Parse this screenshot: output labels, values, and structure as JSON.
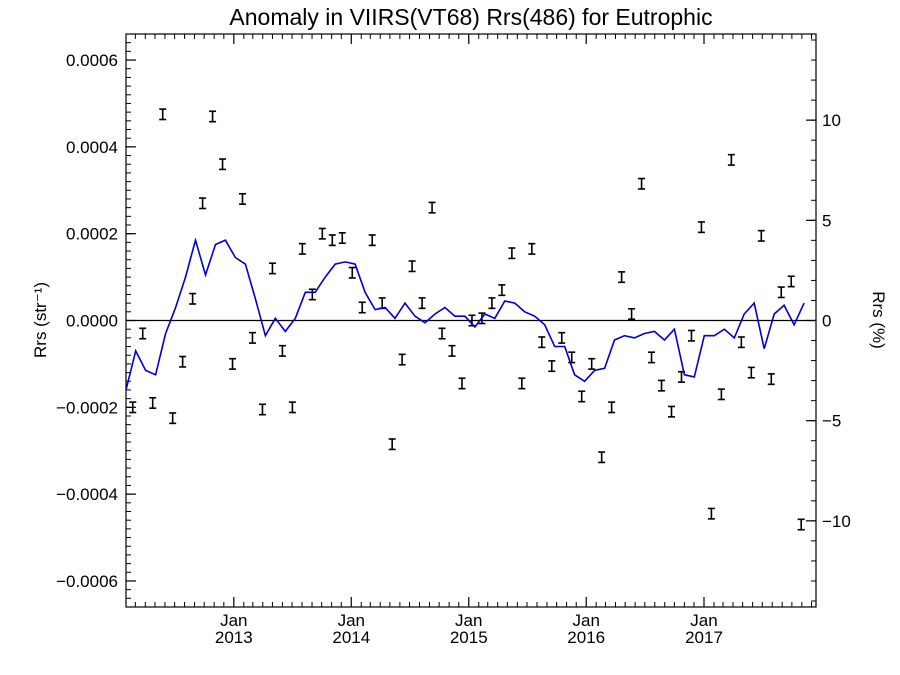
{
  "chart_data": {
    "type": "line",
    "title": "Anomaly in VIIRS(VT68) Rrs(486) for Eutrophic",
    "ylabel_left": "Rrs (str⁻¹)",
    "ylabel_right": "Rrs (%)",
    "xlim": [
      "2012-02-01",
      "2017-12-15"
    ],
    "ylim_left": [
      -0.00066,
      0.00066
    ],
    "ylim_right": [
      -14.3,
      14.3
    ],
    "y_ticks_left": [
      {
        "value": -0.0006,
        "label": "−0.0006"
      },
      {
        "value": -0.0004,
        "label": "−0.0004"
      },
      {
        "value": -0.0002,
        "label": "−0.0002"
      },
      {
        "value": 0.0,
        "label": "0.0000"
      },
      {
        "value": 0.0002,
        "label": "0.0002"
      },
      {
        "value": 0.0004,
        "label": "0.0004"
      },
      {
        "value": 0.0006,
        "label": "0.0006"
      }
    ],
    "y_ticks_right": [
      {
        "value": -10,
        "label": "−10"
      },
      {
        "value": -5,
        "label": "−5"
      },
      {
        "value": 0,
        "label": "0"
      },
      {
        "value": 5,
        "label": "5"
      },
      {
        "value": 10,
        "label": "10"
      }
    ],
    "x_ticks": [
      {
        "date": "2013-01-01",
        "month": "Jan",
        "year": "2013"
      },
      {
        "date": "2014-01-01",
        "month": "Jan",
        "year": "2014"
      },
      {
        "date": "2015-01-01",
        "month": "Jan",
        "year": "2015"
      },
      {
        "date": "2016-01-01",
        "month": "Jan",
        "year": "2016"
      },
      {
        "date": "2017-01-01",
        "month": "Jan",
        "year": "2017"
      }
    ],
    "zero_line": true,
    "grid": false,
    "series": [
      {
        "type": "errorbar",
        "color": "#000000",
        "error": 1.2e-05,
        "points": [
          {
            "x": "2012-02-22",
            "y": -0.0002
          },
          {
            "x": "2012-03-24",
            "y": -3e-05
          },
          {
            "x": "2012-04-24",
            "y": -0.00019
          },
          {
            "x": "2012-05-25",
            "y": 0.000475
          },
          {
            "x": "2012-06-25",
            "y": -0.000225
          },
          {
            "x": "2012-07-26",
            "y": -9.5e-05
          },
          {
            "x": "2012-08-26",
            "y": 5e-05
          },
          {
            "x": "2012-09-26",
            "y": 0.00027
          },
          {
            "x": "2012-10-27",
            "y": 0.00047
          },
          {
            "x": "2012-11-27",
            "y": 0.00036
          },
          {
            "x": "2012-12-28",
            "y": -0.0001
          },
          {
            "x": "2013-01-28",
            "y": 0.00028
          },
          {
            "x": "2013-02-28",
            "y": -4e-05
          },
          {
            "x": "2013-03-31",
            "y": -0.000205
          },
          {
            "x": "2013-05-01",
            "y": 0.00012
          },
          {
            "x": "2013-06-01",
            "y": -7e-05
          },
          {
            "x": "2013-07-02",
            "y": -0.0002
          },
          {
            "x": "2013-08-02",
            "y": 0.000165
          },
          {
            "x": "2013-09-02",
            "y": 6e-05
          },
          {
            "x": "2013-10-03",
            "y": 0.0002
          },
          {
            "x": "2013-11-03",
            "y": 0.000185
          },
          {
            "x": "2013-12-04",
            "y": 0.00019
          },
          {
            "x": "2014-01-04",
            "y": 0.00011
          },
          {
            "x": "2014-02-04",
            "y": 3e-05
          },
          {
            "x": "2014-03-07",
            "y": 0.000185
          },
          {
            "x": "2014-04-07",
            "y": 4e-05
          },
          {
            "x": "2014-05-08",
            "y": -0.000285
          },
          {
            "x": "2014-06-08",
            "y": -9e-05
          },
          {
            "x": "2014-07-09",
            "y": 0.000125
          },
          {
            "x": "2014-08-09",
            "y": 4e-05
          },
          {
            "x": "2014-09-09",
            "y": 0.00026
          },
          {
            "x": "2014-10-10",
            "y": -3e-05
          },
          {
            "x": "2014-11-10",
            "y": -7e-05
          },
          {
            "x": "2014-12-11",
            "y": -0.000145
          },
          {
            "x": "2015-01-11",
            "y": 0.0
          },
          {
            "x": "2015-02-11",
            "y": 5e-06
          },
          {
            "x": "2015-03-14",
            "y": 4e-05
          },
          {
            "x": "2015-04-14",
            "y": 7e-05
          },
          {
            "x": "2015-05-15",
            "y": 0.000155
          },
          {
            "x": "2015-06-15",
            "y": -0.000145
          },
          {
            "x": "2015-07-16",
            "y": 0.000165
          },
          {
            "x": "2015-08-16",
            "y": -5e-05
          },
          {
            "x": "2015-09-16",
            "y": -0.000105
          },
          {
            "x": "2015-10-17",
            "y": -4e-05
          },
          {
            "x": "2015-11-17",
            "y": -8.5e-05
          },
          {
            "x": "2015-12-18",
            "y": -0.000175
          },
          {
            "x": "2016-01-18",
            "y": -0.0001
          },
          {
            "x": "2016-02-18",
            "y": -0.000315
          },
          {
            "x": "2016-03-20",
            "y": -0.0002
          },
          {
            "x": "2016-04-20",
            "y": 0.0001
          },
          {
            "x": "2016-05-21",
            "y": 1.5e-05
          },
          {
            "x": "2016-06-21",
            "y": 0.000315
          },
          {
            "x": "2016-07-22",
            "y": -8.5e-05
          },
          {
            "x": "2016-08-22",
            "y": -0.00015
          },
          {
            "x": "2016-09-22",
            "y": -0.00021
          },
          {
            "x": "2016-10-23",
            "y": -0.00013
          },
          {
            "x": "2016-11-23",
            "y": -3.5e-05
          },
          {
            "x": "2016-12-24",
            "y": 0.000215
          },
          {
            "x": "2017-01-24",
            "y": -0.000445
          },
          {
            "x": "2017-02-24",
            "y": -0.00017
          },
          {
            "x": "2017-03-27",
            "y": 0.00037
          },
          {
            "x": "2017-04-27",
            "y": -5e-05
          },
          {
            "x": "2017-05-28",
            "y": -0.00012
          },
          {
            "x": "2017-06-28",
            "y": 0.000195
          },
          {
            "x": "2017-07-29",
            "y": -0.000135
          },
          {
            "x": "2017-08-29",
            "y": 6.5e-05
          },
          {
            "x": "2017-09-29",
            "y": 9e-05
          },
          {
            "x": "2017-10-30",
            "y": -0.00047
          }
        ]
      },
      {
        "type": "line",
        "color": "#0000cc",
        "points": [
          {
            "x": "2012-02-01",
            "y": -0.00016
          },
          {
            "x": "2012-03-02",
            "y": -7e-05
          },
          {
            "x": "2012-04-02",
            "y": -0.000115
          },
          {
            "x": "2012-05-03",
            "y": -0.000125
          },
          {
            "x": "2012-06-03",
            "y": -3e-05
          },
          {
            "x": "2012-07-04",
            "y": 3e-05
          },
          {
            "x": "2012-08-04",
            "y": 0.0001
          },
          {
            "x": "2012-09-04",
            "y": 0.000185
          },
          {
            "x": "2012-10-05",
            "y": 0.000105
          },
          {
            "x": "2012-11-05",
            "y": 0.000175
          },
          {
            "x": "2012-12-06",
            "y": 0.000185
          },
          {
            "x": "2013-01-06",
            "y": 0.000145
          },
          {
            "x": "2013-02-06",
            "y": 0.00013
          },
          {
            "x": "2013-03-09",
            "y": 5e-05
          },
          {
            "x": "2013-04-09",
            "y": -3.5e-05
          },
          {
            "x": "2013-05-10",
            "y": 5e-06
          },
          {
            "x": "2013-06-10",
            "y": -2.5e-05
          },
          {
            "x": "2013-07-11",
            "y": 5e-06
          },
          {
            "x": "2013-08-11",
            "y": 6.5e-05
          },
          {
            "x": "2013-09-11",
            "y": 6.5e-05
          },
          {
            "x": "2013-10-12",
            "y": 0.0001
          },
          {
            "x": "2013-11-12",
            "y": 0.00013
          },
          {
            "x": "2013-12-13",
            "y": 0.000135
          },
          {
            "x": "2014-01-13",
            "y": 0.00013
          },
          {
            "x": "2014-02-13",
            "y": 6.5e-05
          },
          {
            "x": "2014-03-16",
            "y": 2.5e-05
          },
          {
            "x": "2014-04-16",
            "y": 3e-05
          },
          {
            "x": "2014-05-17",
            "y": 5e-06
          },
          {
            "x": "2014-06-17",
            "y": 4e-05
          },
          {
            "x": "2014-07-18",
            "y": 1e-05
          },
          {
            "x": "2014-08-18",
            "y": -5e-06
          },
          {
            "x": "2014-09-18",
            "y": 1.5e-05
          },
          {
            "x": "2014-10-19",
            "y": 3e-05
          },
          {
            "x": "2014-11-19",
            "y": 1e-05
          },
          {
            "x": "2014-12-20",
            "y": 1e-05
          },
          {
            "x": "2015-01-20",
            "y": -1.5e-05
          },
          {
            "x": "2015-02-20",
            "y": 1.5e-05
          },
          {
            "x": "2015-03-23",
            "y": 5e-06
          },
          {
            "x": "2015-04-23",
            "y": 4.5e-05
          },
          {
            "x": "2015-05-24",
            "y": 4e-05
          },
          {
            "x": "2015-06-24",
            "y": 2e-05
          },
          {
            "x": "2015-07-25",
            "y": 1e-05
          },
          {
            "x": "2015-08-25",
            "y": -1e-05
          },
          {
            "x": "2015-09-25",
            "y": -6e-05
          },
          {
            "x": "2015-10-26",
            "y": -6e-05
          },
          {
            "x": "2015-11-26",
            "y": -0.000125
          },
          {
            "x": "2015-12-27",
            "y": -0.00014
          },
          {
            "x": "2016-01-27",
            "y": -0.000115
          },
          {
            "x": "2016-02-27",
            "y": -0.00011
          },
          {
            "x": "2016-03-29",
            "y": -4.5e-05
          },
          {
            "x": "2016-04-29",
            "y": -3.5e-05
          },
          {
            "x": "2016-05-30",
            "y": -4e-05
          },
          {
            "x": "2016-06-30",
            "y": -3e-05
          },
          {
            "x": "2016-07-31",
            "y": -2.5e-05
          },
          {
            "x": "2016-08-31",
            "y": -4.5e-05
          },
          {
            "x": "2016-10-01",
            "y": -2e-05
          },
          {
            "x": "2016-11-01",
            "y": -0.000125
          },
          {
            "x": "2016-12-02",
            "y": -0.00013
          },
          {
            "x": "2017-01-02",
            "y": -3.5e-05
          },
          {
            "x": "2017-02-02",
            "y": -3.5e-05
          },
          {
            "x": "2017-03-05",
            "y": -2e-05
          },
          {
            "x": "2017-04-05",
            "y": -4e-05
          },
          {
            "x": "2017-05-06",
            "y": 1.5e-05
          },
          {
            "x": "2017-06-06",
            "y": 4e-05
          },
          {
            "x": "2017-07-07",
            "y": -6.5e-05
          },
          {
            "x": "2017-08-07",
            "y": 1.5e-05
          },
          {
            "x": "2017-09-07",
            "y": 3.5e-05
          },
          {
            "x": "2017-10-08",
            "y": -1e-05
          },
          {
            "x": "2017-11-08",
            "y": 4e-05
          }
        ]
      }
    ]
  }
}
